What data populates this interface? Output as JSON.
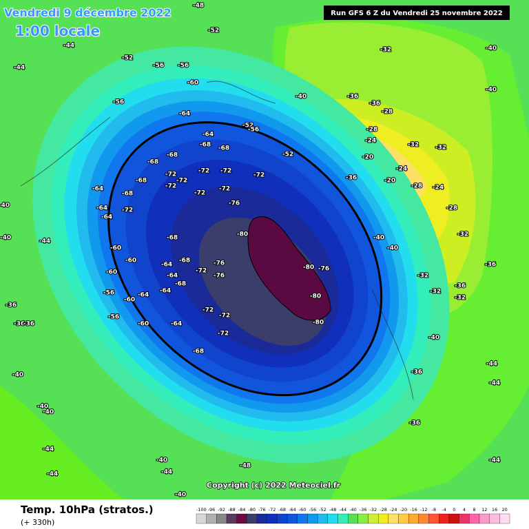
{
  "header": {
    "date": "Vendredi 9 décembre 2022",
    "time": "1:00 locale",
    "run": "Run GFS 6 Z du Vendredi 25 novembre 2022"
  },
  "map": {
    "copyright": "Copyright (c) 2022 Meteociel.fr",
    "labels": [
      -52,
      -48,
      -44,
      -44,
      -52,
      -56,
      -56,
      -60,
      -56,
      -64,
      -64,
      -68,
      -68,
      -68,
      -68,
      -72,
      -72,
      -72,
      -72,
      -72,
      -72,
      -72,
      -72,
      -76,
      -64,
      -64,
      -64,
      -68,
      -68,
      -72,
      -80,
      -80,
      -76,
      -80,
      -80,
      -68,
      -76,
      -76,
      -72,
      -68,
      -64,
      -64,
      -68,
      -64,
      -60,
      -60,
      -60,
      -56,
      -60,
      -64,
      -56,
      -60,
      -64,
      -72,
      -72,
      -72,
      -68,
      -44,
      -40,
      -40,
      -36,
      -36,
      -36,
      -40,
      -40,
      -40,
      -44,
      -44,
      -40,
      -44,
      -40,
      -48,
      -32,
      -40,
      -40,
      -36,
      -36,
      -28,
      -28,
      -24,
      -32,
      -32,
      -20,
      -24,
      -20,
      -28,
      -24,
      -28,
      -32,
      -36,
      -32,
      -32,
      -40,
      -36,
      -44,
      -44,
      -44,
      -36,
      -32,
      -36,
      -52,
      -52,
      -56,
      -36,
      -40,
      -40,
      -40
    ]
  },
  "footer": {
    "variable": "Temp. 10hPa (stratos.)",
    "lead": "(+ 330h)"
  },
  "legend": {
    "ticks": [
      -100,
      -96,
      -92,
      -88,
      -84,
      -80,
      -76,
      -72,
      -68,
      -64,
      -60,
      -56,
      -52,
      -48,
      -44,
      -40,
      -36,
      -32,
      -28,
      -24,
      -20,
      -16,
      -12,
      -8,
      -4,
      0,
      4,
      8,
      12,
      16,
      20
    ],
    "colors": [
      "#d8d8d8",
      "#b0b0b0",
      "#888888",
      "#5a3a5a",
      "#6a0a40",
      "#3b3d6a",
      "#1a2a99",
      "#1030bb",
      "#1144cc",
      "#1155dd",
      "#1177ee",
      "#1199ee",
      "#22bbee",
      "#22ddee",
      "#33eebb",
      "#55e055",
      "#88ee44",
      "#ccee33",
      "#eeee22",
      "#ffe066",
      "#ffcc44",
      "#ffaa33",
      "#ff8833",
      "#ff5533",
      "#ee2222",
      "#cc1111",
      "#ee3366",
      "#ff66aa",
      "#ff99cc",
      "#ffbbdd",
      "#ffddee"
    ]
  }
}
